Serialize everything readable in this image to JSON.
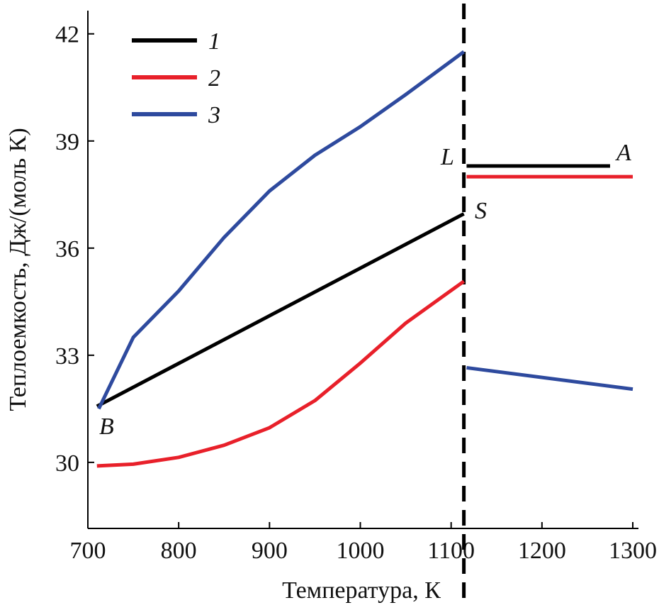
{
  "chart_data": {
    "type": "line",
    "x_label": "Температура, К",
    "y_label": "Теплоемкость, Дж/(моль К)",
    "xlim": [
      700,
      1300
    ],
    "xticks": [
      700,
      800,
      900,
      1000,
      1100,
      1200,
      1300
    ],
    "ylim": [
      28.15,
      42.65
    ],
    "yticks": [
      30,
      33,
      36,
      39,
      42
    ],
    "vline": 1114,
    "legend": "upper left",
    "annotations": [
      "B",
      "S",
      "L",
      "A"
    ],
    "series": [
      {
        "name": "1",
        "color": "#000000",
        "x": [
          710,
          1114,
          1115,
          1117,
          1275
        ],
        "values": [
          31.57,
          36.96,
          null,
          38.3,
          38.3
        ]
      },
      {
        "name": "2",
        "color": "#e8202a",
        "x": [
          710,
          750,
          800,
          850,
          900,
          950,
          1000,
          1050,
          1114,
          1115,
          1117,
          1300
        ],
        "values": [
          29.9,
          29.95,
          30.14,
          30.48,
          30.97,
          31.73,
          32.78,
          33.9,
          35.07,
          null,
          38.0,
          38.0
        ]
      },
      {
        "name": "3",
        "color": "#2e4a9e",
        "x": [
          712,
          750,
          800,
          850,
          900,
          950,
          1000,
          1050,
          1114,
          1115,
          1117,
          1300
        ],
        "values": [
          31.5,
          33.5,
          34.8,
          36.3,
          37.6,
          38.6,
          39.4,
          40.3,
          41.5,
          null,
          32.65,
          32.05
        ]
      }
    ]
  }
}
